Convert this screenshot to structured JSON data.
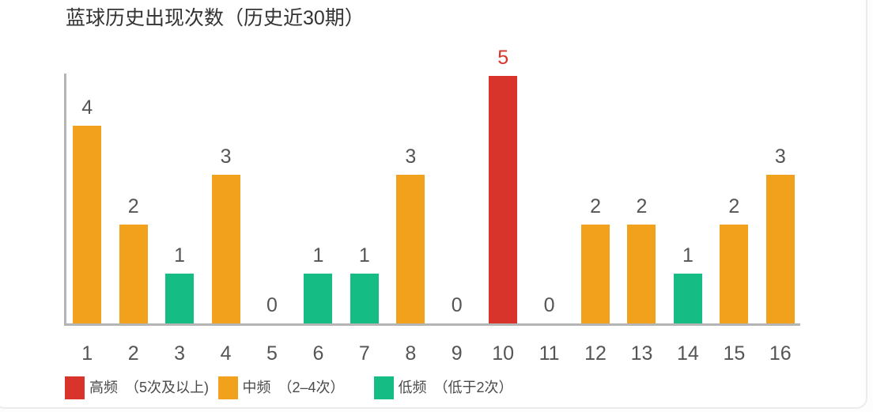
{
  "title": "蓝球历史出现次数（历史近30期）",
  "chart_data": {
    "type": "bar",
    "title": "蓝球历史出现次数（历史近30期）",
    "categories": [
      "1",
      "2",
      "3",
      "4",
      "5",
      "6",
      "7",
      "8",
      "9",
      "10",
      "11",
      "12",
      "13",
      "14",
      "15",
      "16"
    ],
    "values": [
      4,
      2,
      1,
      3,
      0,
      1,
      1,
      3,
      0,
      5,
      0,
      2,
      2,
      1,
      2,
      3
    ],
    "value_labels": [
      "4",
      "2",
      "1",
      "3",
      "0",
      "1",
      "1",
      "3",
      "0",
      "5",
      "0",
      "2",
      "2",
      "1",
      "2",
      "3"
    ],
    "buckets": [
      "mid",
      "mid",
      "low",
      "mid",
      "zero",
      "low",
      "low",
      "mid",
      "zero",
      "high",
      "zero",
      "mid",
      "mid",
      "low",
      "mid",
      "mid"
    ],
    "xlabel": "",
    "ylabel": "",
    "ylim": [
      0,
      5
    ],
    "grid": false,
    "legend_position": "bottom-left",
    "legend": [
      {
        "key": "high",
        "label": "高频 （5次及以上)",
        "color": "#d9342c"
      },
      {
        "key": "mid",
        "label": "中频 （2–4次）",
        "color": "#f2a11d"
      },
      {
        "key": "low",
        "label": "低频 （低于2次）",
        "color": "#15bd85"
      }
    ],
    "colors": {
      "high": "#d9342c",
      "mid": "#f2a11d",
      "low": "#15bd85",
      "axis": "#b5b5b5",
      "label": "#555555",
      "high_label": "#d9342c",
      "title": "#333333"
    }
  }
}
